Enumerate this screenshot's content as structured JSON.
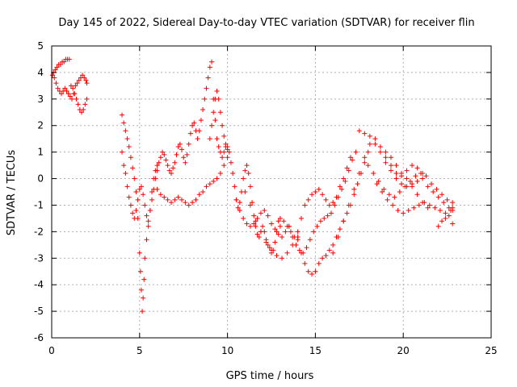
{
  "chart_data": {
    "type": "scatter",
    "title": "Day 145 of 2022, Sidereal Day-to-day VTEC variation (SDTVAR) for receiver flin",
    "xlabel": "GPS time / hours",
    "ylabel": "SDTVAR / TECUs",
    "xlim": [
      0,
      25
    ],
    "ylim": [
      -6,
      5
    ],
    "xticks": [
      0,
      5,
      10,
      15,
      20,
      25
    ],
    "yticks": [
      -6,
      -5,
      -4,
      -3,
      -2,
      -1,
      0,
      1,
      2,
      3,
      4,
      5
    ],
    "grid": true,
    "marker": "+",
    "color": "#ff0000",
    "series": [
      {
        "name": "flin",
        "x": [
          0.05,
          0.15,
          0.25,
          0.35,
          0.45,
          0.55,
          0.65,
          0.75,
          0.85,
          0.95,
          1.05,
          1.15,
          1.25,
          1.35,
          1.45,
          1.55,
          1.65,
          1.75,
          1.85,
          1.95,
          2.0,
          0.1,
          0.2,
          0.3,
          0.4,
          0.5,
          0.6,
          0.7,
          0.8,
          0.9,
          1.0,
          1.1,
          1.2,
          1.3,
          1.4,
          1.5,
          1.6,
          1.7,
          1.8,
          1.9,
          2.0,
          4.0,
          4.1,
          4.2,
          4.3,
          4.4,
          4.5,
          4.6,
          4.7,
          4.8,
          4.9,
          5.0,
          5.05,
          5.1,
          5.15,
          5.2,
          5.25,
          5.3,
          5.4,
          5.5,
          5.6,
          5.7,
          5.8,
          5.9,
          6.0,
          4.0,
          4.1,
          4.2,
          4.3,
          4.4,
          4.5,
          4.6,
          4.7,
          4.8,
          4.9,
          5.0,
          5.1,
          5.2,
          5.3,
          5.4,
          5.5,
          5.6,
          5.7,
          5.8,
          5.9,
          6.0,
          6.1,
          6.2,
          6.3,
          6.4,
          6.5,
          6.6,
          6.7,
          6.8,
          6.9,
          7.0,
          7.1,
          7.2,
          7.3,
          7.4,
          7.5,
          7.6,
          7.7,
          7.8,
          7.9,
          8.0,
          8.1,
          8.2,
          8.3,
          8.4,
          8.5,
          8.6,
          8.7,
          8.8,
          8.9,
          9.0,
          9.1,
          9.2,
          9.3,
          9.4,
          9.5,
          9.6,
          9.7,
          9.8,
          9.9,
          10.0,
          6.0,
          6.2,
          6.4,
          6.6,
          6.8,
          7.0,
          7.2,
          7.4,
          7.6,
          7.8,
          8.0,
          8.2,
          8.4,
          8.6,
          8.8,
          9.0,
          9.2,
          9.4,
          9.6,
          9.8,
          10.0,
          9.0,
          9.1,
          9.2,
          9.3,
          9.4,
          9.5,
          9.6,
          9.7,
          9.8,
          9.9,
          10.0,
          10.1,
          10.2,
          10.3,
          10.4,
          10.5,
          10.6,
          10.7,
          10.8,
          10.9,
          11.0,
          11.1,
          11.2,
          11.3,
          11.4,
          11.5,
          11.6,
          11.7,
          11.8,
          11.9,
          12.0,
          12.1,
          12.2,
          12.3,
          12.4,
          12.5,
          12.6,
          12.7,
          12.8,
          12.9,
          13.0,
          10.5,
          10.7,
          10.9,
          11.1,
          11.3,
          11.5,
          11.7,
          11.9,
          12.1,
          12.3,
          12.5,
          12.7,
          12.9,
          13.1,
          13.3,
          13.5,
          11.0,
          11.3,
          11.6,
          11.9,
          12.2,
          12.5,
          12.8,
          13.1,
          13.4,
          13.7,
          14.0,
          13.0,
          13.2,
          13.4,
          13.6,
          13.8,
          14.0,
          14.2,
          14.4,
          14.6,
          14.8,
          15.0,
          15.2,
          15.4,
          15.6,
          15.8,
          16.0,
          16.2,
          16.4,
          16.6,
          16.8,
          17.0,
          13.5,
          13.7,
          13.9,
          14.1,
          14.3,
          14.5,
          14.7,
          14.9,
          15.1,
          15.3,
          15.5,
          15.7,
          15.9,
          16.1,
          16.3,
          16.5,
          16.7,
          16.9,
          17.1,
          17.3,
          14.0,
          14.2,
          14.4,
          14.6,
          14.8,
          15.0,
          15.2,
          15.4,
          15.6,
          15.8,
          16.0,
          16.2,
          16.4,
          16.6,
          16.8,
          17.0,
          17.2,
          17.4,
          17.6,
          17.8,
          18.0,
          16.0,
          16.3,
          16.6,
          16.9,
          17.2,
          17.5,
          17.8,
          18.1,
          18.4,
          18.7,
          19.0,
          19.3,
          19.6,
          19.9,
          20.2,
          20.5,
          20.8,
          21.1,
          17.5,
          17.8,
          18.1,
          18.4,
          18.7,
          19.0,
          19.3,
          19.6,
          19.9,
          20.2,
          20.5,
          20.8,
          21.1,
          21.4,
          21.7,
          22.0,
          22.3,
          22.6,
          22.8,
          18.0,
          18.3,
          18.6,
          18.9,
          19.2,
          19.5,
          19.8,
          20.1,
          20.4,
          20.7,
          21.0,
          21.3,
          21.6,
          21.9,
          22.2,
          22.5,
          22.8,
          18.5,
          18.8,
          19.1,
          19.4,
          19.7,
          20.0,
          20.3,
          20.6,
          20.9,
          21.2,
          21.5,
          21.8,
          22.1,
          22.4,
          22.7,
          22.8,
          19.0,
          19.3,
          19.6,
          19.9,
          20.2,
          20.5,
          20.8,
          21.1,
          21.4,
          22.0,
          22.2,
          22.4,
          22.6,
          22.8
        ],
        "y": [
          3.9,
          3.8,
          3.6,
          3.4,
          3.3,
          3.2,
          3.3,
          3.4,
          3.3,
          3.2,
          3.1,
          3.0,
          3.2,
          3.5,
          3.6,
          3.7,
          3.8,
          3.9,
          3.8,
          3.7,
          3.6,
          4.0,
          4.1,
          4.2,
          4.3,
          4.3,
          4.4,
          4.4,
          4.5,
          4.5,
          4.5,
          3.5,
          3.4,
          3.2,
          3.0,
          2.8,
          2.6,
          2.5,
          2.6,
          2.8,
          3.0,
          2.4,
          2.1,
          1.8,
          1.5,
          1.2,
          0.8,
          0.4,
          0.0,
          -0.5,
          -1.5,
          -2.8,
          -3.5,
          -4.2,
          -5.0,
          -4.5,
          -3.8,
          -3.0,
          -2.3,
          -1.8,
          -1.2,
          -0.5,
          0.0,
          0.3,
          0.5,
          1.0,
          0.5,
          0.2,
          -0.3,
          -0.7,
          -1.0,
          -1.3,
          -1.5,
          -1.2,
          -0.8,
          -0.4,
          -0.3,
          -0.6,
          -1.0,
          -1.4,
          -1.6,
          -1.2,
          -0.8,
          -0.4,
          0.0,
          0.3,
          0.6,
          0.8,
          1.0,
          0.9,
          0.7,
          0.5,
          0.3,
          0.2,
          0.4,
          0.6,
          0.9,
          1.2,
          1.3,
          1.1,
          0.8,
          0.6,
          0.9,
          1.3,
          1.7,
          2.0,
          2.1,
          1.8,
          1.5,
          1.8,
          2.2,
          2.6,
          3.0,
          3.4,
          3.8,
          4.2,
          4.4,
          3.0,
          2.2,
          1.5,
          1.2,
          1.0,
          0.8,
          1.0,
          1.2,
          1.1,
          -0.4,
          -0.6,
          -0.7,
          -0.8,
          -0.9,
          -0.8,
          -0.7,
          -0.8,
          -0.9,
          -1.0,
          -0.9,
          -0.8,
          -0.6,
          -0.5,
          -0.3,
          -0.2,
          -0.1,
          0.0,
          0.2,
          0.5,
          0.8,
          1.5,
          2.0,
          2.5,
          3.0,
          3.3,
          3.0,
          2.5,
          2.0,
          1.6,
          1.3,
          1.2,
          1.0,
          0.6,
          0.2,
          -0.3,
          -0.8,
          -1.1,
          -0.9,
          -0.5,
          0.0,
          0.3,
          0.5,
          0.2,
          -0.3,
          -0.9,
          -1.4,
          -1.8,
          -2.1,
          -2.2,
          -2.0,
          -1.8,
          -2.0,
          -2.3,
          -2.5,
          -2.6,
          -2.8,
          -2.7,
          -2.4,
          -2.0,
          -1.6,
          -1.8,
          -0.8,
          -1.2,
          -1.5,
          -1.7,
          -1.8,
          -1.7,
          -1.5,
          -1.3,
          -1.2,
          -1.4,
          -1.7,
          -1.9,
          -2.1,
          -2.2,
          -2.0,
          -1.8,
          -0.5,
          -1.0,
          -1.6,
          -2.0,
          -2.4,
          -2.7,
          -2.9,
          -3.0,
          -2.8,
          -2.5,
          -2.2,
          -1.5,
          -1.6,
          -1.8,
          -2.0,
          -2.2,
          -2.0,
          -1.5,
          -1.0,
          -0.8,
          -0.6,
          -0.5,
          -0.4,
          -0.6,
          -0.8,
          -1.0,
          -0.9,
          -0.7,
          -0.3,
          0.0,
          0.4,
          0.8,
          -1.8,
          -2.2,
          -2.5,
          -2.7,
          -2.8,
          -2.6,
          -2.3,
          -2.0,
          -1.8,
          -1.6,
          -1.5,
          -1.4,
          -1.3,
          -1.0,
          -0.7,
          -0.4,
          -0.1,
          0.3,
          0.7,
          1.0,
          -2.3,
          -2.8,
          -3.2,
          -3.5,
          -3.6,
          -3.5,
          -3.2,
          -3.0,
          -2.9,
          -2.7,
          -2.5,
          -2.2,
          -1.9,
          -1.6,
          -1.3,
          -1.0,
          -0.6,
          -0.2,
          0.2,
          0.6,
          1.0,
          -2.8,
          -2.2,
          -1.6,
          -1.0,
          -0.4,
          0.2,
          0.8,
          1.3,
          1.5,
          1.2,
          0.8,
          0.5,
          0.2,
          0.1,
          0.3,
          0.5,
          0.4,
          0.2,
          1.8,
          1.7,
          1.6,
          1.3,
          1.0,
          0.6,
          0.3,
          0.0,
          -0.2,
          -0.3,
          -0.2,
          -0.1,
          0.0,
          -0.3,
          -0.5,
          -0.7,
          -0.9,
          -1.1,
          -1.2,
          0.5,
          0.2,
          -0.1,
          -0.4,
          -0.6,
          -0.7,
          -0.5,
          -0.3,
          -0.1,
          0.1,
          0.2,
          0.1,
          -0.2,
          -0.4,
          -0.6,
          -0.8,
          -0.9,
          -0.2,
          -0.5,
          -0.8,
          -1.0,
          -1.2,
          -1.3,
          -1.2,
          -1.1,
          -1.0,
          -0.9,
          -1.0,
          -1.1,
          -1.2,
          -1.3,
          -1.2,
          -1.1,
          1.0,
          0.8,
          0.5,
          0.2,
          0.0,
          -0.3,
          -0.6,
          -0.9,
          -1.1,
          -1.8,
          -1.6,
          -1.5,
          -1.4,
          -1.7
        ]
      }
    ]
  }
}
